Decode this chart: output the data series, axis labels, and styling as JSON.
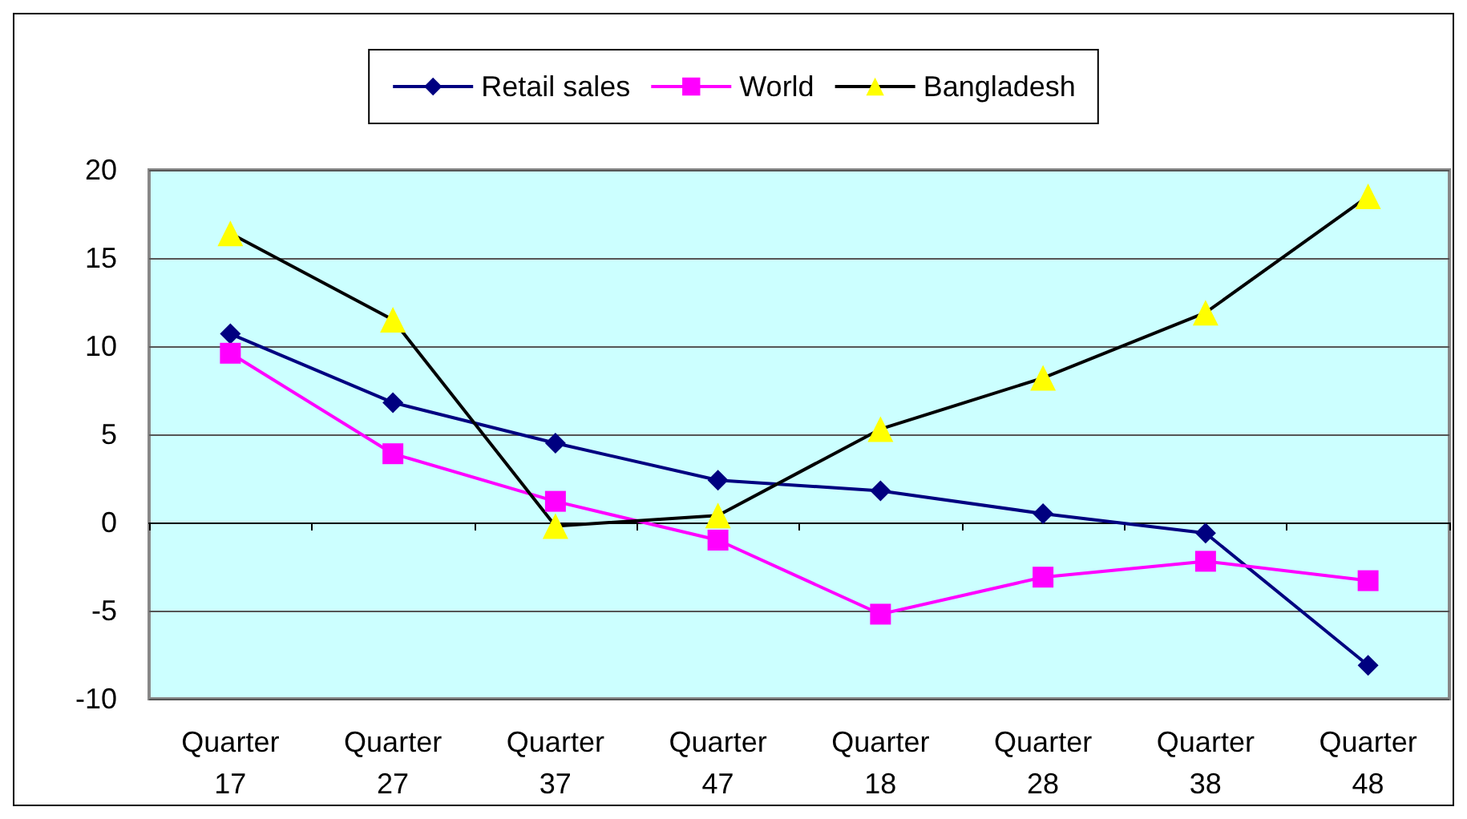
{
  "chart_data": {
    "type": "line",
    "categories": [
      "Quarter 17",
      "Quarter 27",
      "Quarter 37",
      "Quarter 47",
      "Quarter 18",
      "Quarter 28",
      "Quarter 38",
      "Quarter 48"
    ],
    "series": [
      {
        "name": "Retail sales",
        "color": "#000080",
        "marker": "diamond",
        "values": [
          10.7,
          6.8,
          4.5,
          2.4,
          1.8,
          0.5,
          -0.6,
          -8.1
        ]
      },
      {
        "name": "World",
        "color": "#ff00ff",
        "marker": "square",
        "values": [
          9.6,
          3.9,
          1.2,
          -1.0,
          -5.2,
          -3.1,
          -2.2,
          -3.3
        ]
      },
      {
        "name": "Bangladesh",
        "color": "#000000",
        "marker": "triangle",
        "values": [
          16.4,
          11.5,
          -0.2,
          0.4,
          5.3,
          8.2,
          11.9,
          18.5
        ]
      }
    ],
    "ylim": [
      -10,
      20
    ],
    "yticks": [
      -10,
      -5,
      0,
      5,
      10,
      15,
      20
    ],
    "grid": "y",
    "legend": "top",
    "line_style": "solid"
  }
}
